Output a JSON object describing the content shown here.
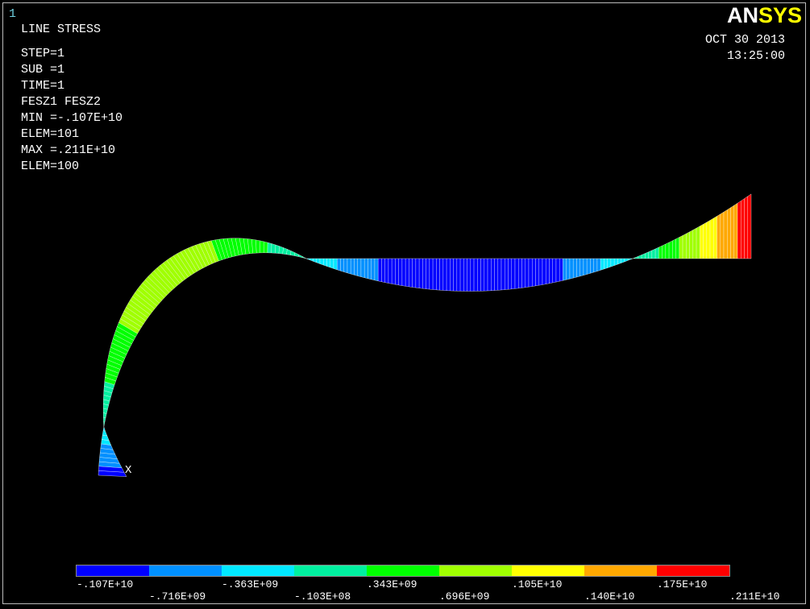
{
  "window_number": "1",
  "logo": {
    "part1": "AN",
    "part2": "SYS"
  },
  "info": [
    "LINE STRESS",
    "STEP=1",
    "SUB =1",
    "TIME=1",
    "FESZ1   FESZ2",
    "MIN =-.107E+10",
    "ELEM=101",
    "MAX =.211E+10",
    "ELEM=100"
  ],
  "date": "OCT 30 2013",
  "time": "13:25:00",
  "axis_label": "X",
  "legend": {
    "colors": [
      "#0000ff",
      "#0090ff",
      "#00e8ff",
      "#00f0a0",
      "#00ff00",
      "#a0ff00",
      "#ffff00",
      "#ffa800",
      "#ff0000"
    ],
    "labels": [
      "-.107E+10",
      "-.716E+09",
      "-.363E+09",
      "-.103E+08",
      ".343E+09",
      ".696E+09",
      ".105E+10",
      ".140E+10",
      ".175E+10",
      ".211E+10"
    ]
  }
}
